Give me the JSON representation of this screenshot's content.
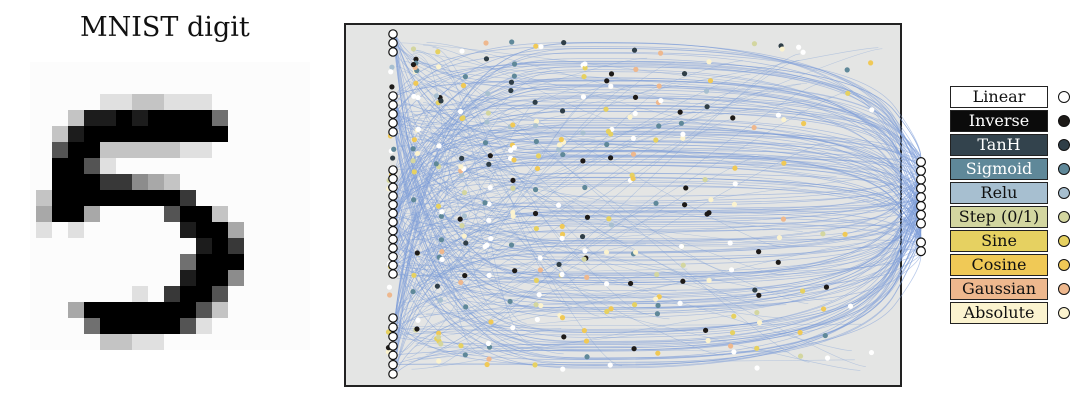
{
  "title": "MNIST digit",
  "legend": [
    {
      "label": "Linear",
      "fill": "#ffffff",
      "text": "#111111",
      "dot": "#ffffff"
    },
    {
      "label": "Inverse",
      "fill": "#0b0b0b",
      "text": "#ffffff",
      "dot": "#1d1a18"
    },
    {
      "label": "TanH",
      "fill": "#33434d",
      "text": "#ffffff",
      "dot": "#2f3e47"
    },
    {
      "label": "Sigmoid",
      "fill": "#5f8899",
      "text": "#ffffff",
      "dot": "#5f8899"
    },
    {
      "label": "Relu",
      "fill": "#a7bfd0",
      "text": "#111111",
      "dot": "#a7bfd0"
    },
    {
      "label": "Step (0/1)",
      "fill": "#d3d6a0",
      "text": "#111111",
      "dot": "#d3d6a0"
    },
    {
      "label": "Sine",
      "fill": "#e6d161",
      "text": "#111111",
      "dot": "#e6d161"
    },
    {
      "label": "Cosine",
      "fill": "#f0c956",
      "text": "#111111",
      "dot": "#f0c956"
    },
    {
      "label": "Gaussian",
      "fill": "#eeb88e",
      "text": "#111111",
      "dot": "#eeb88e"
    },
    {
      "label": "Absolute",
      "fill": "#fbf3cf",
      "text": "#111111",
      "dot": "#fbf3cf"
    }
  ],
  "digit_pixels": [
    "....................",
    "....................",
    ".....1122111........",
    "...2889899995.......",
    "..28999999999.......",
    "..6992222211........",
    "..9961..............",
    "..99977432..........",
    ".2999999997.........",
    ".3993....6992.......",
    ".1.1......8993......",
    "...........897......",
    "..........5999......",
    "..........8994......",
    ".......1.7996.......",
    "...3999999962.......",
    "....59999961........",
    ".....2211..........."
  ]
}
